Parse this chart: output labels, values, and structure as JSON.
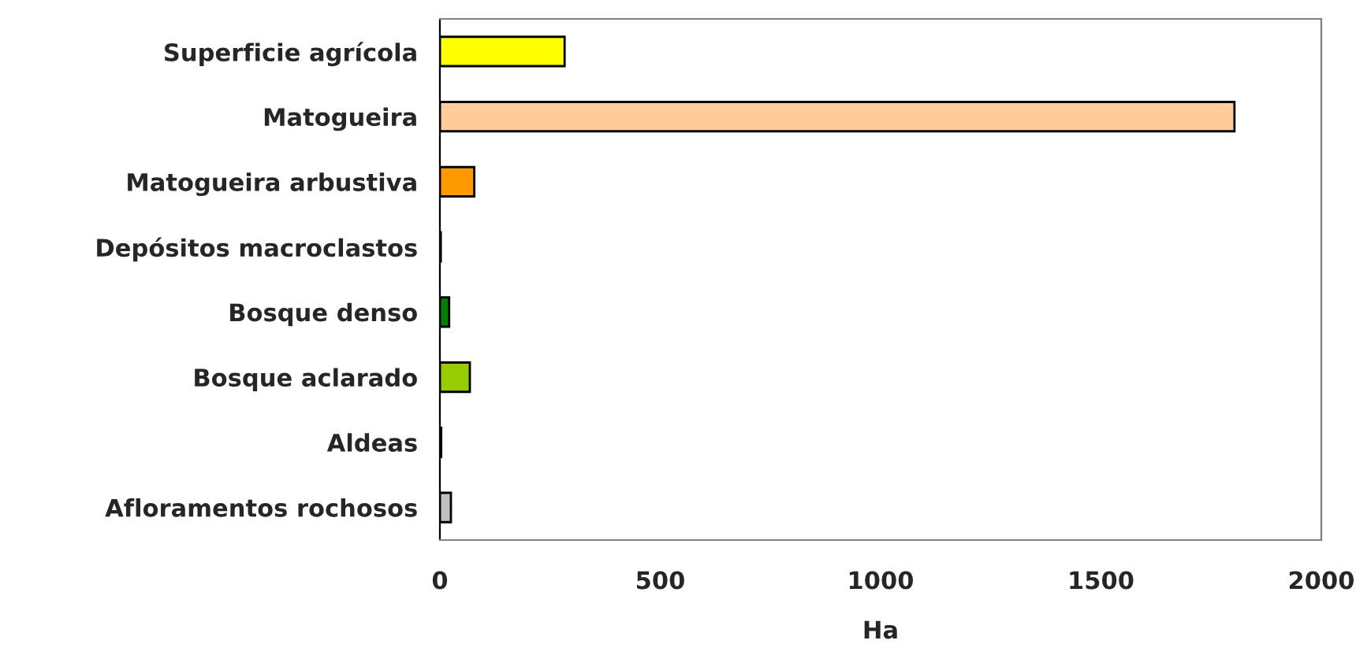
{
  "chart_data": {
    "type": "bar",
    "orientation": "horizontal",
    "xlabel": "Ha",
    "categories": [
      "Superficie agrícola",
      "Matogueira",
      "Matogueira arbustiva",
      "Depósitos macroclastos",
      "Bosque denso",
      "Bosque aclarado",
      "Aldeas",
      "Afloramentos rochosos"
    ],
    "values": [
      283,
      1803,
      78,
      2,
      21,
      68,
      3,
      25
    ],
    "colors": [
      "#ffff00",
      "#ffcc99",
      "#ff9900",
      "#33cccc",
      "#008000",
      "#99cc00",
      "#993300",
      "#c0c0c0"
    ],
    "xlim": [
      0,
      2000
    ],
    "xticks": [
      0,
      500,
      1000,
      1500,
      2000
    ],
    "grid": false,
    "legend": false
  }
}
